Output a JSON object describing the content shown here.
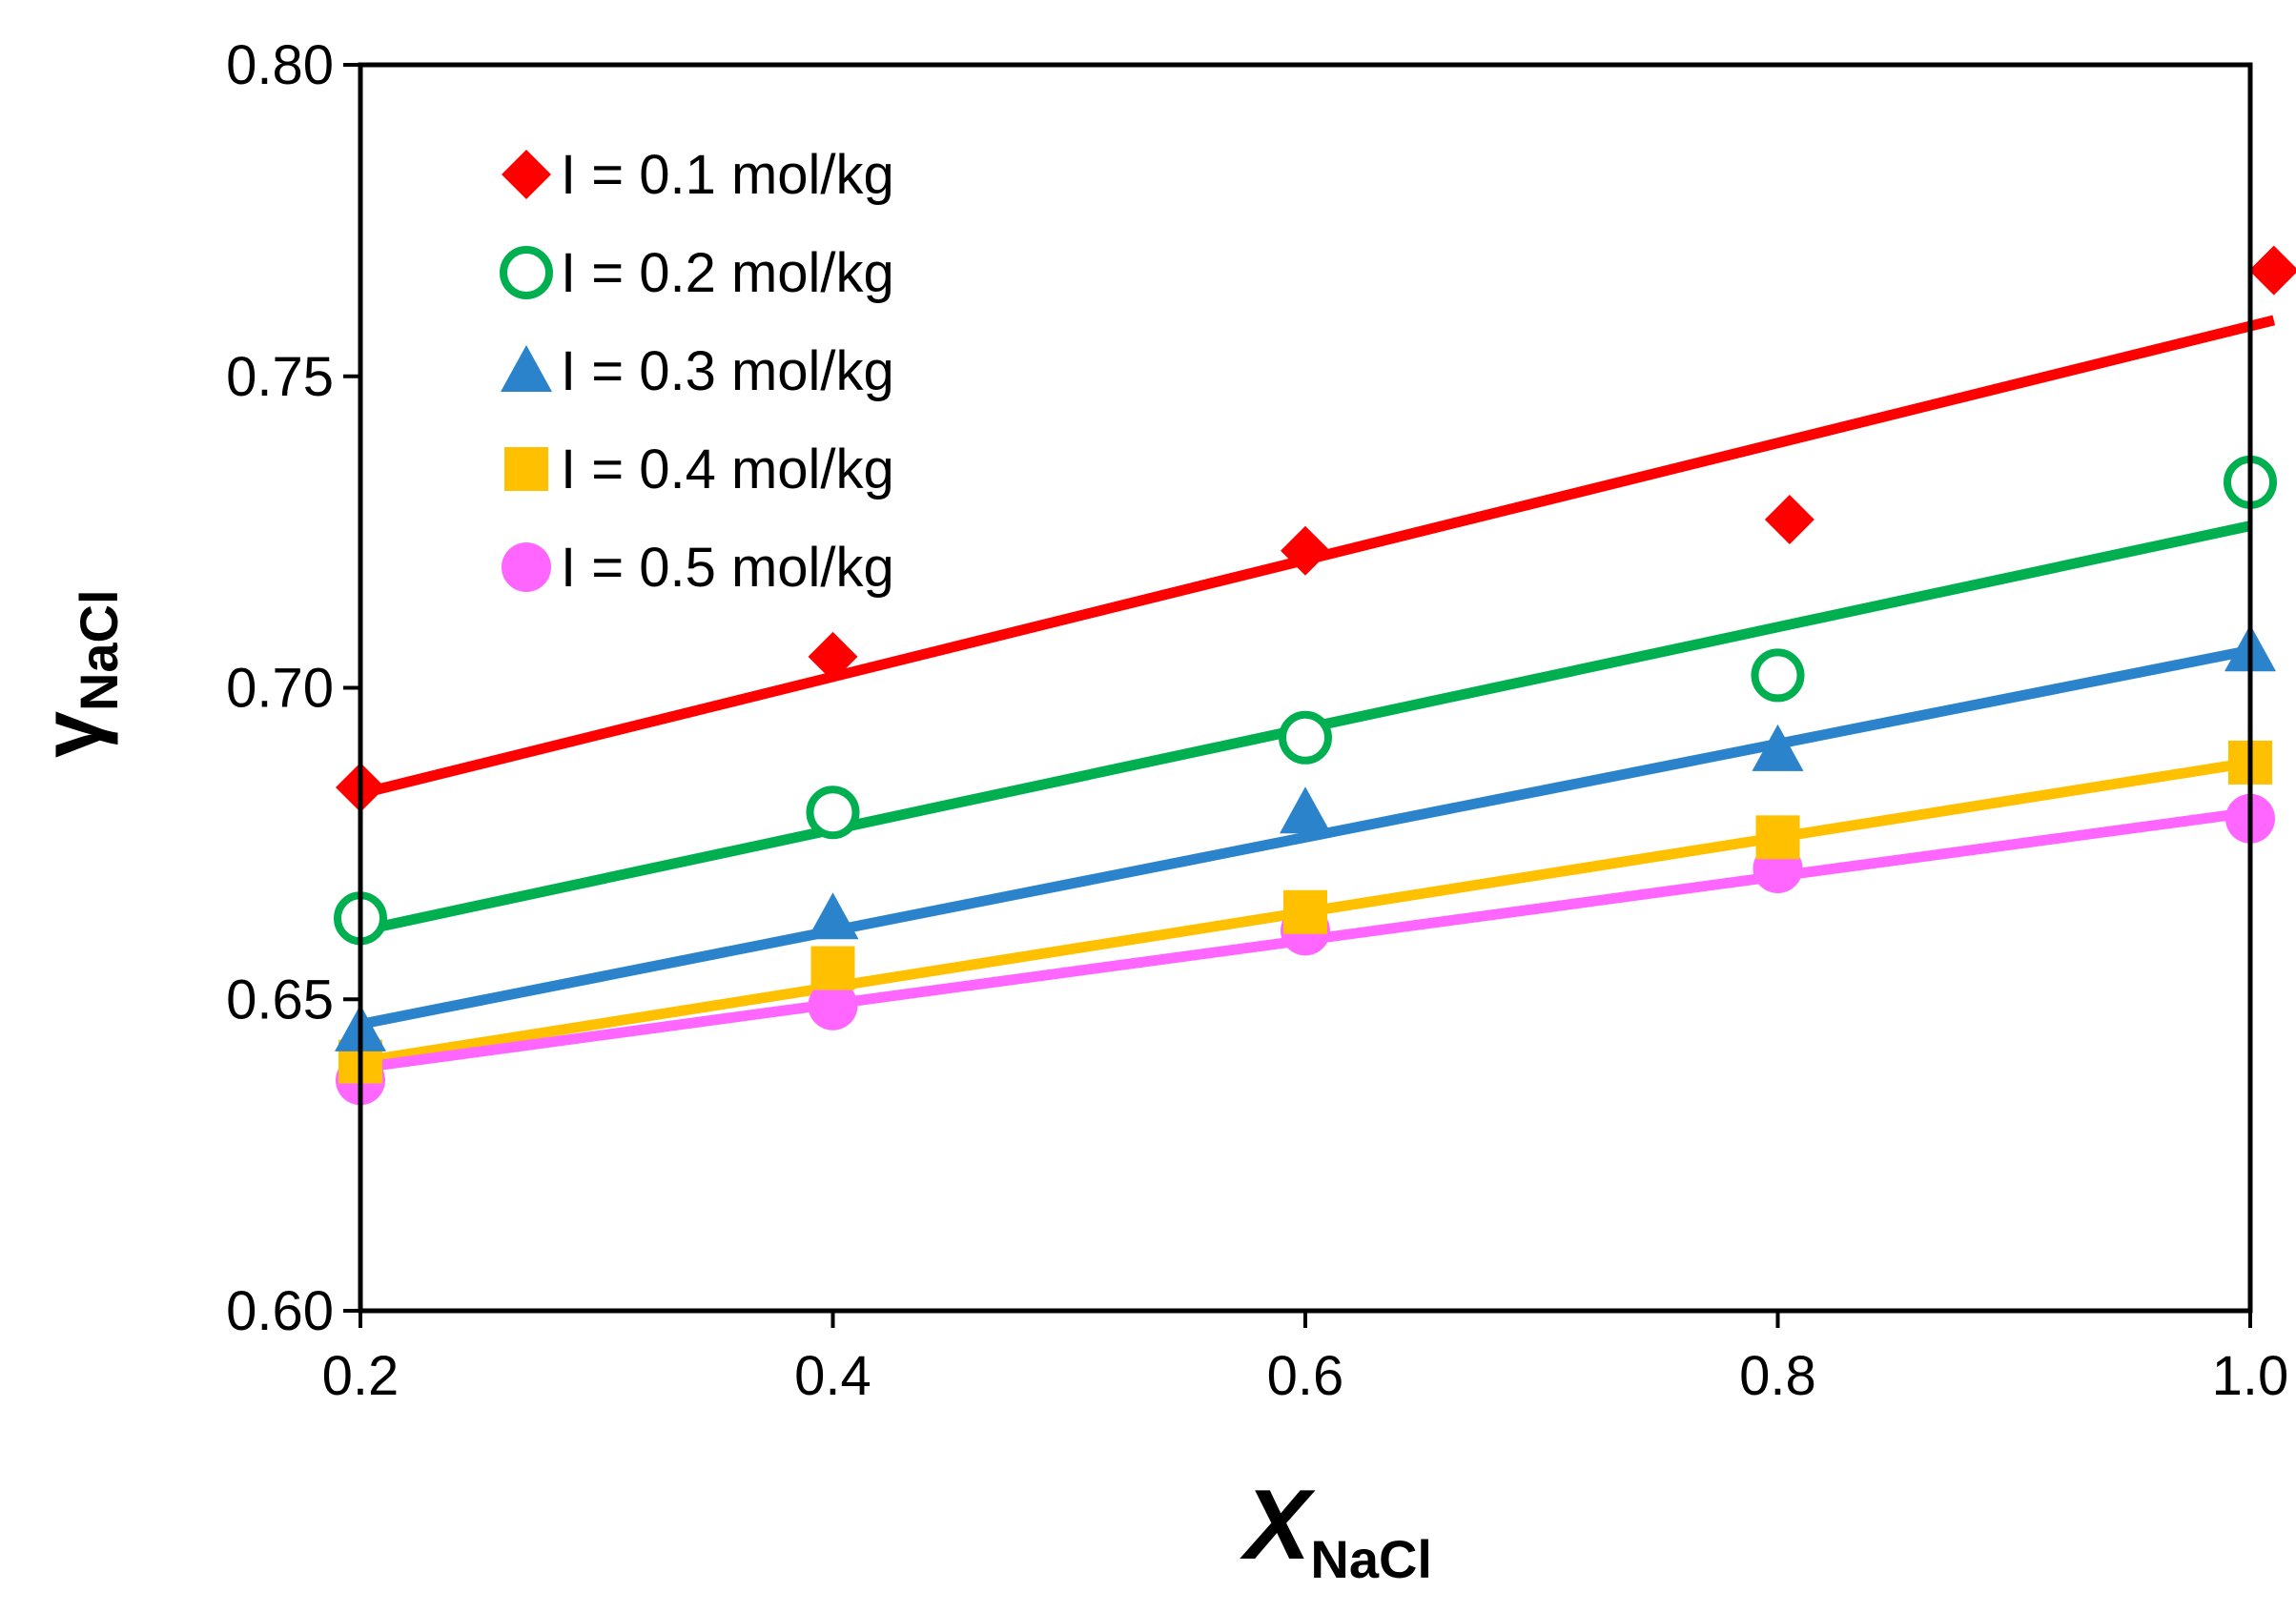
{
  "chart_data": {
    "type": "scatter",
    "title": "",
    "xlabel": {
      "main": "X",
      "sub": "NaCl"
    },
    "ylabel": {
      "main": "γ",
      "sub": "NaCl"
    },
    "xlim": [
      0.2,
      1.0
    ],
    "ylim": [
      0.6,
      0.8
    ],
    "xticks": [
      0.2,
      0.4,
      0.6,
      0.8,
      1.0
    ],
    "xtick_labels": [
      "0.2",
      "0.4",
      "0.6",
      "0.8",
      "1.0"
    ],
    "yticks": [
      0.6,
      0.65,
      0.7,
      0.75,
      0.8
    ],
    "ytick_labels": [
      "0.60",
      "0.65",
      "0.70",
      "0.75",
      "0.80"
    ],
    "grid": false,
    "legend_position": "top-left",
    "series": [
      {
        "name": "I = 0.1 mol/kg",
        "color": "#ff0000",
        "marker": "diamond",
        "points": [
          [
            0.2,
            0.684
          ],
          [
            0.4,
            0.705
          ],
          [
            0.6,
            0.722
          ],
          [
            0.805,
            0.727
          ],
          [
            1.01,
            0.767
          ]
        ],
        "fit": [
          [
            0.2,
            0.683
          ],
          [
            1.01,
            0.759
          ]
        ]
      },
      {
        "name": "I = 0.2 mol/kg",
        "color": "#00b050",
        "marker": "circle-open",
        "points": [
          [
            0.2,
            0.663
          ],
          [
            0.4,
            0.68
          ],
          [
            0.6,
            0.692
          ],
          [
            0.8,
            0.702
          ],
          [
            1.0,
            0.733
          ]
        ],
        "fit": [
          [
            0.2,
            0.661
          ],
          [
            1.0,
            0.726
          ]
        ]
      },
      {
        "name": "I = 0.3 mol/kg",
        "color": "#2a83cb",
        "marker": "triangle",
        "points": [
          [
            0.2,
            0.645
          ],
          [
            0.4,
            0.663
          ],
          [
            0.6,
            0.68
          ],
          [
            0.8,
            0.69
          ],
          [
            1.0,
            0.706
          ]
        ],
        "fit": [
          [
            0.2,
            0.646
          ],
          [
            1.0,
            0.706
          ]
        ]
      },
      {
        "name": "I = 0.4 mol/kg",
        "color": "#ffc000",
        "marker": "square",
        "points": [
          [
            0.2,
            0.64
          ],
          [
            0.4,
            0.655
          ],
          [
            0.6,
            0.664
          ],
          [
            0.8,
            0.676
          ],
          [
            1.0,
            0.688
          ]
        ],
        "fit": [
          [
            0.2,
            0.64
          ],
          [
            1.0,
            0.688
          ]
        ]
      },
      {
        "name": "I = 0.5 mol/kg",
        "color": "#ff66ff",
        "marker": "circle",
        "points": [
          [
            0.2,
            0.637
          ],
          [
            0.4,
            0.649
          ],
          [
            0.6,
            0.661
          ],
          [
            0.8,
            0.671
          ],
          [
            1.0,
            0.679
          ]
        ],
        "fit": [
          [
            0.2,
            0.639
          ],
          [
            1.0,
            0.68
          ]
        ]
      }
    ]
  }
}
